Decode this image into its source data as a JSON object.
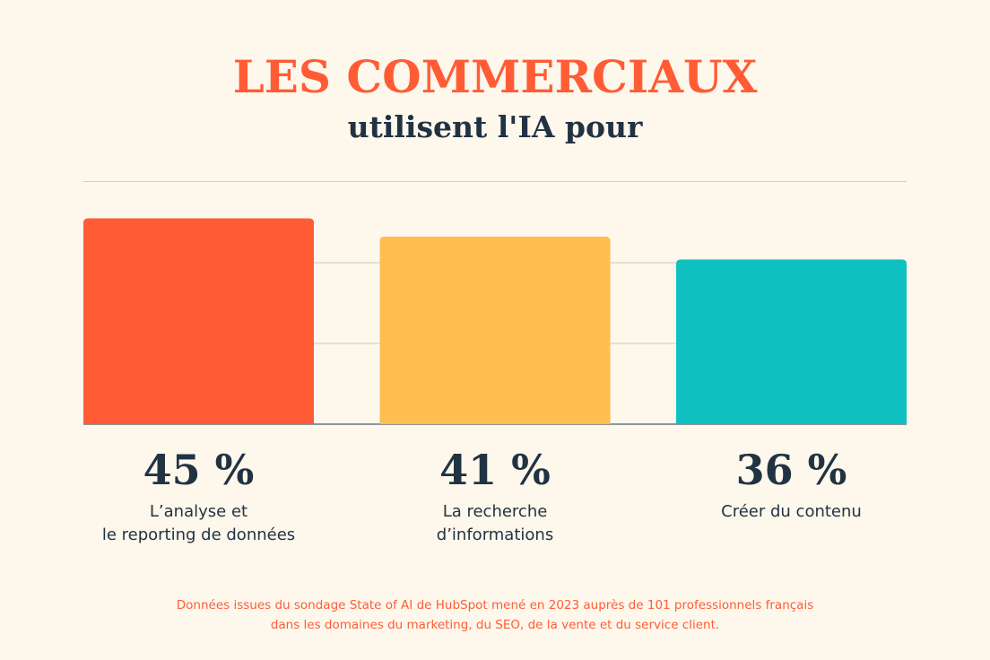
{
  "header": {
    "title": "LES COMMERCIAUX",
    "subtitle": "utilisent l'IA pour"
  },
  "chart_data": {
    "type": "bar",
    "categories": [
      [
        "L’analyse et",
        "le reporting de données"
      ],
      [
        "La recherche",
        "d’informations"
      ],
      [
        "Créer du contenu"
      ]
    ],
    "values": [
      45,
      41,
      36
    ],
    "value_labels": [
      "45 %",
      "41 %",
      "36 %"
    ],
    "colors": [
      "#ff5c35",
      "#ffbe4f",
      "#10c1c1"
    ],
    "ylim": [
      0,
      50
    ],
    "grid": true,
    "legend": "none"
  },
  "footnote": {
    "line1": "Données issues du sondage State of AI de HubSpot mené en 2023 auprès de 101 professionnels français",
    "line2": "dans les domaines du marketing, du SEO, de la vente et du service client."
  }
}
